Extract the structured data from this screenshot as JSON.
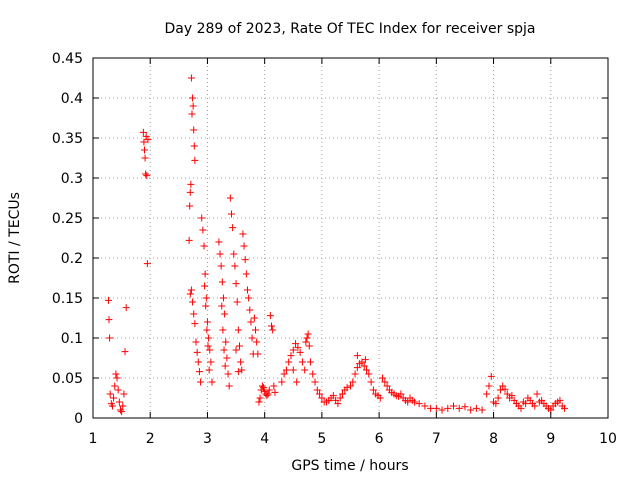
{
  "chart_data": {
    "type": "scatter",
    "title": "Day 289 of 2023, Rate Of TEC Index for receiver spja",
    "xlabel": "GPS time / hours",
    "ylabel": "ROTI / TECUs",
    "xlim": [
      1,
      10
    ],
    "ylim": [
      0,
      0.45
    ],
    "xticks": [
      1,
      2,
      3,
      4,
      5,
      6,
      7,
      8,
      9,
      10
    ],
    "xtick_labels": [
      "1",
      "2",
      "3",
      "4",
      "5",
      "6",
      "7",
      "8",
      "9",
      "10"
    ],
    "yticks": [
      0,
      0.05,
      0.1,
      0.15,
      0.2,
      0.25,
      0.3,
      0.35,
      0.4,
      0.45
    ],
    "ytick_labels": [
      "0",
      "0.05",
      "0.1",
      "0.15",
      "0.2",
      "0.25",
      "0.3",
      "0.35",
      "0.4",
      "0.45"
    ],
    "grid": true,
    "marker": "plus",
    "marker_color": "#ff0000",
    "series": [
      {
        "name": "ROTI",
        "points": [
          [
            1.27,
            0.147
          ],
          [
            1.28,
            0.123
          ],
          [
            1.29,
            0.1
          ],
          [
            1.3,
            0.03
          ],
          [
            1.32,
            0.018
          ],
          [
            1.34,
            0.015
          ],
          [
            1.36,
            0.025
          ],
          [
            1.38,
            0.04
          ],
          [
            1.4,
            0.055
          ],
          [
            1.42,
            0.05
          ],
          [
            1.44,
            0.035
          ],
          [
            1.46,
            0.02
          ],
          [
            1.48,
            0.01
          ],
          [
            1.5,
            0.008
          ],
          [
            1.52,
            0.015
          ],
          [
            1.54,
            0.03
          ],
          [
            1.56,
            0.083
          ],
          [
            1.58,
            0.138
          ],
          [
            1.88,
            0.357
          ],
          [
            1.89,
            0.345
          ],
          [
            1.9,
            0.335
          ],
          [
            1.91,
            0.325
          ],
          [
            1.92,
            0.305
          ],
          [
            1.93,
            0.352
          ],
          [
            1.94,
            0.303
          ],
          [
            1.95,
            0.193
          ],
          [
            1.96,
            0.348
          ],
          [
            2.68,
            0.222
          ],
          [
            2.69,
            0.265
          ],
          [
            2.7,
            0.282
          ],
          [
            2.71,
            0.292
          ],
          [
            2.72,
            0.425
          ],
          [
            2.73,
            0.38
          ],
          [
            2.74,
            0.4
          ],
          [
            2.75,
            0.39
          ],
          [
            2.76,
            0.36
          ],
          [
            2.77,
            0.34
          ],
          [
            2.78,
            0.322
          ],
          [
            2.7,
            0.155
          ],
          [
            2.72,
            0.16
          ],
          [
            2.74,
            0.145
          ],
          [
            2.76,
            0.13
          ],
          [
            2.78,
            0.118
          ],
          [
            2.8,
            0.095
          ],
          [
            2.82,
            0.082
          ],
          [
            2.84,
            0.07
          ],
          [
            2.86,
            0.058
          ],
          [
            2.88,
            0.045
          ],
          [
            2.9,
            0.25
          ],
          [
            2.92,
            0.235
          ],
          [
            2.94,
            0.215
          ],
          [
            2.96,
            0.18
          ],
          [
            2.98,
            0.15
          ],
          [
            3.0,
            0.12
          ],
          [
            3.02,
            0.1
          ],
          [
            3.04,
            0.085
          ],
          [
            3.06,
            0.07
          ],
          [
            3.08,
            0.045
          ],
          [
            2.95,
            0.165
          ],
          [
            2.97,
            0.14
          ],
          [
            2.99,
            0.11
          ],
          [
            3.01,
            0.09
          ],
          [
            3.03,
            0.06
          ],
          [
            3.2,
            0.22
          ],
          [
            3.22,
            0.205
          ],
          [
            3.24,
            0.19
          ],
          [
            3.26,
            0.17
          ],
          [
            3.28,
            0.15
          ],
          [
            3.3,
            0.13
          ],
          [
            3.32,
            0.095
          ],
          [
            3.34,
            0.075
          ],
          [
            3.36,
            0.055
          ],
          [
            3.38,
            0.04
          ],
          [
            3.25,
            0.14
          ],
          [
            3.27,
            0.11
          ],
          [
            3.29,
            0.085
          ],
          [
            3.31,
            0.065
          ],
          [
            3.4,
            0.275
          ],
          [
            3.42,
            0.255
          ],
          [
            3.44,
            0.238
          ],
          [
            3.46,
            0.205
          ],
          [
            3.48,
            0.19
          ],
          [
            3.5,
            0.168
          ],
          [
            3.52,
            0.145
          ],
          [
            3.54,
            0.11
          ],
          [
            3.56,
            0.09
          ],
          [
            3.58,
            0.07
          ],
          [
            3.6,
            0.06
          ],
          [
            3.5,
            0.085
          ],
          [
            3.54,
            0.058
          ],
          [
            3.62,
            0.23
          ],
          [
            3.64,
            0.215
          ],
          [
            3.66,
            0.198
          ],
          [
            3.68,
            0.18
          ],
          [
            3.7,
            0.16
          ],
          [
            3.72,
            0.15
          ],
          [
            3.74,
            0.135
          ],
          [
            3.76,
            0.12
          ],
          [
            3.78,
            0.1
          ],
          [
            3.8,
            0.08
          ],
          [
            3.82,
            0.125
          ],
          [
            3.84,
            0.11
          ],
          [
            3.86,
            0.095
          ],
          [
            3.88,
            0.08
          ],
          [
            3.9,
            0.02
          ],
          [
            3.92,
            0.025
          ],
          [
            3.94,
            0.035
          ],
          [
            3.96,
            0.04
          ],
          [
            3.98,
            0.038
          ],
          [
            4.0,
            0.033
          ],
          [
            4.02,
            0.03
          ],
          [
            4.04,
            0.028
          ],
          [
            4.06,
            0.03
          ],
          [
            4.08,
            0.035
          ],
          [
            4.1,
            0.128
          ],
          [
            4.12,
            0.115
          ],
          [
            4.14,
            0.11
          ],
          [
            4.16,
            0.04
          ],
          [
            4.18,
            0.032
          ],
          [
            4.3,
            0.045
          ],
          [
            4.34,
            0.055
          ],
          [
            4.38,
            0.06
          ],
          [
            4.42,
            0.07
          ],
          [
            4.46,
            0.078
          ],
          [
            4.5,
            0.085
          ],
          [
            4.54,
            0.093
          ],
          [
            4.58,
            0.088
          ],
          [
            4.62,
            0.082
          ],
          [
            4.66,
            0.07
          ],
          [
            4.7,
            0.06
          ],
          [
            4.5,
            0.06
          ],
          [
            4.56,
            0.045
          ],
          [
            4.72,
            0.095
          ],
          [
            4.74,
            0.1
          ],
          [
            4.76,
            0.105
          ],
          [
            4.78,
            0.09
          ],
          [
            4.8,
            0.07
          ],
          [
            4.84,
            0.055
          ],
          [
            4.88,
            0.045
          ],
          [
            4.92,
            0.035
          ],
          [
            4.96,
            0.03
          ],
          [
            5.0,
            0.025
          ],
          [
            5.04,
            0.02
          ],
          [
            5.08,
            0.02
          ],
          [
            5.12,
            0.022
          ],
          [
            5.16,
            0.025
          ],
          [
            5.2,
            0.028
          ],
          [
            5.24,
            0.022
          ],
          [
            5.28,
            0.018
          ],
          [
            5.32,
            0.025
          ],
          [
            5.36,
            0.03
          ],
          [
            5.4,
            0.035
          ],
          [
            5.44,
            0.038
          ],
          [
            5.5,
            0.04
          ],
          [
            5.54,
            0.045
          ],
          [
            5.58,
            0.055
          ],
          [
            5.62,
            0.063
          ],
          [
            5.66,
            0.068
          ],
          [
            5.7,
            0.07
          ],
          [
            5.74,
            0.065
          ],
          [
            5.78,
            0.06
          ],
          [
            5.82,
            0.055
          ],
          [
            5.62,
            0.078
          ],
          [
            5.76,
            0.073
          ],
          [
            5.86,
            0.045
          ],
          [
            5.9,
            0.035
          ],
          [
            5.94,
            0.03
          ],
          [
            5.98,
            0.028
          ],
          [
            6.02,
            0.025
          ],
          [
            6.06,
            0.05
          ],
          [
            6.1,
            0.045
          ],
          [
            6.14,
            0.04
          ],
          [
            6.18,
            0.035
          ],
          [
            6.22,
            0.032
          ],
          [
            6.26,
            0.03
          ],
          [
            6.3,
            0.028
          ],
          [
            6.34,
            0.027
          ],
          [
            6.38,
            0.03
          ],
          [
            6.42,
            0.025
          ],
          [
            6.46,
            0.022
          ],
          [
            6.5,
            0.02
          ],
          [
            6.54,
            0.025
          ],
          [
            6.58,
            0.022
          ],
          [
            6.62,
            0.02
          ],
          [
            6.7,
            0.018
          ],
          [
            6.8,
            0.015
          ],
          [
            6.9,
            0.012
          ],
          [
            7.0,
            0.012
          ],
          [
            7.1,
            0.01
          ],
          [
            7.2,
            0.012
          ],
          [
            7.3,
            0.015
          ],
          [
            7.4,
            0.012
          ],
          [
            7.5,
            0.014
          ],
          [
            7.6,
            0.01
          ],
          [
            7.7,
            0.012
          ],
          [
            7.8,
            0.01
          ],
          [
            7.88,
            0.03
          ],
          [
            7.92,
            0.04
          ],
          [
            7.96,
            0.052
          ],
          [
            8.0,
            0.02
          ],
          [
            8.04,
            0.018
          ],
          [
            8.08,
            0.025
          ],
          [
            8.12,
            0.035
          ],
          [
            8.16,
            0.04
          ],
          [
            8.2,
            0.036
          ],
          [
            8.24,
            0.03
          ],
          [
            8.28,
            0.025
          ],
          [
            8.32,
            0.028
          ],
          [
            8.36,
            0.022
          ],
          [
            8.4,
            0.018
          ],
          [
            8.44,
            0.015
          ],
          [
            8.48,
            0.012
          ],
          [
            8.52,
            0.02
          ],
          [
            8.56,
            0.018
          ],
          [
            8.6,
            0.025
          ],
          [
            8.64,
            0.022
          ],
          [
            8.68,
            0.018
          ],
          [
            8.72,
            0.015
          ],
          [
            8.76,
            0.03
          ],
          [
            8.8,
            0.02
          ],
          [
            8.84,
            0.022
          ],
          [
            8.88,
            0.018
          ],
          [
            8.92,
            0.015
          ],
          [
            8.96,
            0.012
          ],
          [
            9.0,
            0.01
          ],
          [
            9.04,
            0.015
          ],
          [
            9.08,
            0.018
          ],
          [
            9.12,
            0.02
          ],
          [
            9.16,
            0.022
          ],
          [
            9.2,
            0.015
          ],
          [
            9.24,
            0.012
          ]
        ]
      }
    ]
  }
}
